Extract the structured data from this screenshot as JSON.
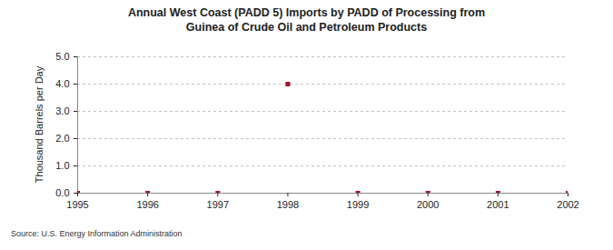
{
  "chart_data": {
    "type": "scatter",
    "title": "Annual West Coast (PADD 5) Imports by PADD of Processing from Guinea of Crude Oil and Petroleum Products",
    "y_label": "Thousand Barrels per Day",
    "source": "Source: U.S. Energy Information Administration",
    "x": [
      1995,
      1996,
      1997,
      1998,
      1999,
      2000,
      2001,
      2002
    ],
    "values": [
      0,
      0,
      0,
      4.0,
      0,
      0,
      0,
      0
    ],
    "color": "#a3132a",
    "marker": "square",
    "xlim": [
      1995,
      2002
    ],
    "xticks": [
      1995,
      1996,
      1997,
      1998,
      1999,
      2000,
      2001,
      2002
    ],
    "ylim": [
      0,
      5
    ],
    "yticks": [
      {
        "value": 0,
        "label": "0.0"
      },
      {
        "value": 1,
        "label": "1.0"
      },
      {
        "value": 2,
        "label": "2.0"
      },
      {
        "value": 3,
        "label": "3.0"
      },
      {
        "value": 4,
        "label": "4.0"
      },
      {
        "value": 5,
        "label": "5.0"
      }
    ],
    "grid": true
  }
}
